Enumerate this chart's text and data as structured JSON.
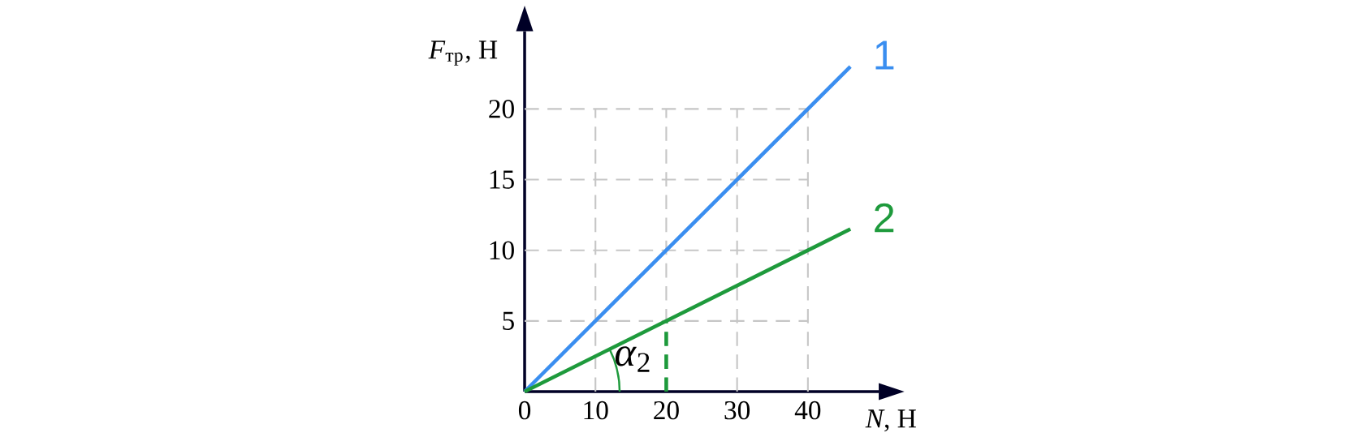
{
  "chart_data": {
    "type": "line",
    "xlabel": "*N*, Н",
    "ylabel": "*F*$_{тр}$, Н",
    "xlim": [
      0,
      50
    ],
    "ylim": [
      0,
      25.5
    ],
    "xticks": [
      0,
      10,
      20,
      30,
      40
    ],
    "yticks": [
      5,
      10,
      15,
      20
    ],
    "grid": true,
    "series": [
      {
        "name": "1",
        "color": "#3a8ef0",
        "x": [
          0,
          46
        ],
        "values": [
          0,
          23
        ]
      },
      {
        "name": "2",
        "color": "#1e9a3c",
        "x": [
          0,
          46
        ],
        "values": [
          0,
          11.5
        ]
      },
      {
        "color": "#1e9a3c",
        "x": [
          20,
          20
        ],
        "values": [
          0,
          5
        ],
        "line_style": "dashed"
      }
    ],
    "annotations": [
      "*α*$_{2}$"
    ]
  }
}
